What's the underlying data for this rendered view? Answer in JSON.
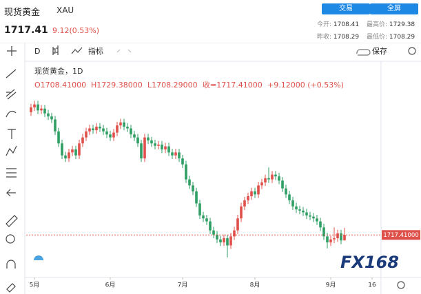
{
  "header": {
    "symbol": "现货黄金",
    "code": "XAU",
    "price": "1717.41",
    "change": "9.12(0.53%)",
    "buttons": [
      "交易",
      "全屏"
    ],
    "stats": [
      {
        "label": "今开:",
        "value": "1708.41"
      },
      {
        "label": "最高价:",
        "value": "1729.38"
      },
      {
        "label": "昨收:",
        "value": "1708.29"
      },
      {
        "label": "最低价:",
        "value": "1708.29"
      }
    ]
  },
  "toolbar": {
    "interval": "D",
    "indicators": "指标",
    "save": "保存"
  },
  "legend": {
    "title": "现货黄金，1D",
    "open": "O1708.41000",
    "high": "H1729.38000",
    "low": "L1708.29000",
    "close": "收=1717.41000",
    "change": "+9.12000 (+0.53%)"
  },
  "watermark": "FX168",
  "chart_data": {
    "type": "candlestick",
    "up_color": "#e0504a",
    "down_color": "#2e9e63",
    "xlim": [
      -1.4,
      101
    ],
    "ylim": [
      1650,
      2000
    ],
    "xticks": [
      {
        "value": 1,
        "label": "5月"
      },
      {
        "value": 23,
        "label": "6月"
      },
      {
        "value": 44,
        "label": "7月"
      },
      {
        "value": 65,
        "label": "8月"
      },
      {
        "value": 87,
        "label": "9月"
      },
      {
        "value": 99,
        "label": "16"
      }
    ],
    "price_line": {
      "value": 1717.41,
      "label": "1717.41000",
      "color": "#e0504a"
    },
    "open": [
      1922,
      1930,
      1935,
      1925,
      1928,
      1920,
      1915,
      1910,
      1890,
      1870,
      1850,
      1845,
      1855,
      1860,
      1850,
      1870,
      1880,
      1890,
      1895,
      1892,
      1898,
      1895,
      1890,
      1885,
      1880,
      1888,
      1900,
      1905,
      1898,
      1895,
      1885,
      1880,
      1870,
      1845,
      1880,
      1875,
      1870,
      1866,
      1868,
      1860,
      1865,
      1855,
      1850,
      1855,
      1845,
      1835,
      1810,
      1800,
      1790,
      1770,
      1750,
      1745,
      1740,
      1725,
      1718,
      1710,
      1705,
      1712,
      1700,
      1715,
      1725,
      1745,
      1765,
      1775,
      1782,
      1790,
      1785,
      1800,
      1805,
      1812,
      1810,
      1818,
      1815,
      1808,
      1795,
      1785,
      1775,
      1765,
      1760,
      1758,
      1755,
      1750,
      1748,
      1745,
      1740,
      1730,
      1715,
      1705,
      1710,
      1712,
      1720,
      1708.41
    ],
    "high": [
      1936,
      1941,
      1941,
      1934,
      1934,
      1926,
      1921,
      1916,
      1896,
      1876,
      1856,
      1861,
      1866,
      1866,
      1876,
      1886,
      1896,
      1901,
      1901,
      1904,
      1904,
      1901,
      1896,
      1891,
      1894,
      1906,
      1911,
      1911,
      1904,
      1901,
      1891,
      1886,
      1876,
      1886,
      1886,
      1881,
      1876,
      1874,
      1874,
      1871,
      1871,
      1861,
      1861,
      1861,
      1851,
      1841,
      1816,
      1806,
      1796,
      1776,
      1756,
      1751,
      1746,
      1731,
      1724,
      1716,
      1718,
      1718,
      1721,
      1731,
      1751,
      1771,
      1781,
      1788,
      1796,
      1796,
      1806,
      1811,
      1818,
      1830,
      1824,
      1824,
      1821,
      1814,
      1801,
      1791,
      1781,
      1771,
      1766,
      1764,
      1761,
      1756,
      1754,
      1751,
      1746,
      1736,
      1721,
      1716,
      1730,
      1726,
      1726,
      1729.38
    ],
    "low": [
      1916,
      1924,
      1919,
      1919,
      1914,
      1909,
      1904,
      1884,
      1864,
      1844,
      1839,
      1839,
      1849,
      1844,
      1844,
      1864,
      1874,
      1884,
      1886,
      1886,
      1889,
      1884,
      1879,
      1874,
      1874,
      1882,
      1894,
      1892,
      1889,
      1879,
      1874,
      1864,
      1839,
      1839,
      1869,
      1864,
      1860,
      1860,
      1854,
      1854,
      1849,
      1844,
      1844,
      1839,
      1829,
      1804,
      1794,
      1784,
      1764,
      1744,
      1739,
      1734,
      1719,
      1712,
      1704,
      1699,
      1699,
      1680,
      1694,
      1709,
      1719,
      1739,
      1759,
      1769,
      1776,
      1779,
      1779,
      1794,
      1799,
      1804,
      1804,
      1809,
      1802,
      1789,
      1779,
      1769,
      1759,
      1754,
      1752,
      1749,
      1744,
      1742,
      1739,
      1734,
      1724,
      1709,
      1695,
      1699,
      1704,
      1706,
      1702,
      1708.29
    ],
    "close": [
      1930,
      1935,
      1925,
      1928,
      1920,
      1915,
      1910,
      1890,
      1870,
      1850,
      1845,
      1855,
      1860,
      1850,
      1870,
      1880,
      1890,
      1895,
      1892,
      1898,
      1895,
      1890,
      1885,
      1880,
      1888,
      1900,
      1905,
      1898,
      1895,
      1885,
      1880,
      1870,
      1845,
      1880,
      1875,
      1870,
      1866,
      1868,
      1860,
      1865,
      1855,
      1850,
      1855,
      1845,
      1835,
      1810,
      1800,
      1790,
      1770,
      1750,
      1745,
      1740,
      1725,
      1718,
      1710,
      1705,
      1712,
      1700,
      1715,
      1725,
      1745,
      1765,
      1775,
      1782,
      1790,
      1785,
      1800,
      1805,
      1812,
      1810,
      1818,
      1815,
      1808,
      1795,
      1785,
      1775,
      1765,
      1760,
      1758,
      1755,
      1750,
      1748,
      1745,
      1740,
      1730,
      1715,
      1705,
      1710,
      1712,
      1720,
      1708.29,
      1717.41
    ]
  }
}
